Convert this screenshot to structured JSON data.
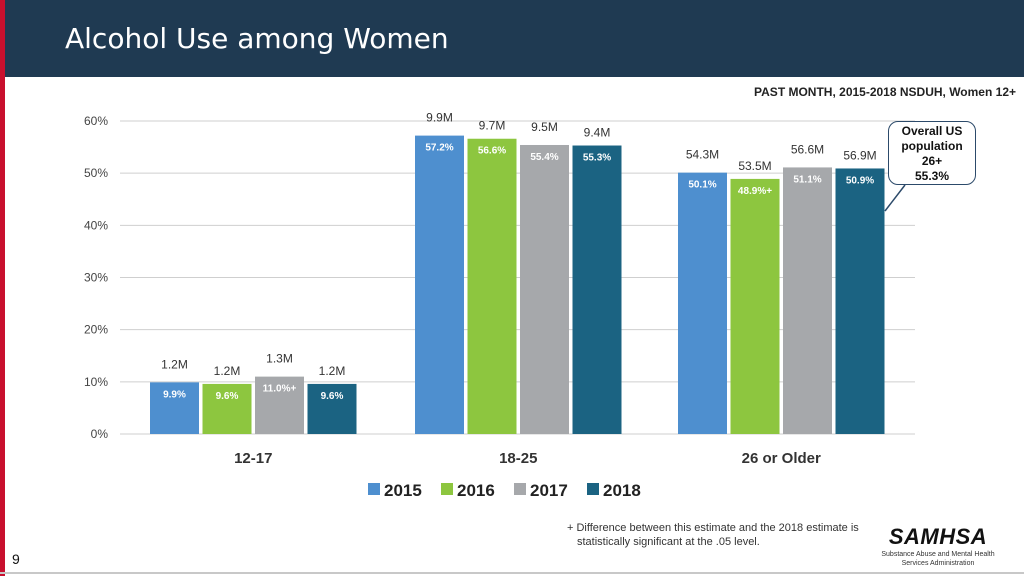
{
  "header": {
    "title": "Alcohol Use among Women"
  },
  "subtitle": "PAST MONTH, 2015-2018 NSDUH, Women 12+",
  "callout": {
    "line1": "Overall US",
    "line2": "population",
    "line3": "26+",
    "line4": "55.3%"
  },
  "footnote": {
    "line1": "+  Difference between this estimate and the 2018 estimate is",
    "line2": "statistically significant at the .05 level."
  },
  "page_number": "9",
  "logo": {
    "name": "SAMHSA",
    "line1": "Substance Abuse and Mental Health",
    "line2": "Services Administration"
  },
  "colors": {
    "2015": "#4e8fcf",
    "2016": "#8dc63f",
    "2017": "#a6a8ab",
    "2018": "#1b6382"
  },
  "chart_data": {
    "type": "bar",
    "title": "Alcohol Use among Women",
    "categories": [
      "12-17",
      "18-25",
      "26 or Older"
    ],
    "ylim": [
      0,
      60
    ],
    "yticks": [
      "0%",
      "10%",
      "20%",
      "30%",
      "40%",
      "50%",
      "60%"
    ],
    "legend_position": "bottom",
    "series": [
      {
        "name": "2015",
        "values": [
          9.9,
          57.2,
          50.1
        ],
        "labels": [
          "9.9%",
          "57.2%",
          "50.1%"
        ],
        "counts": [
          "1.2M",
          "9.9M",
          "54.3M"
        ],
        "flags": [
          "",
          "",
          ""
        ]
      },
      {
        "name": "2016",
        "values": [
          9.6,
          56.6,
          48.9
        ],
        "labels": [
          "9.6%",
          "56.6%",
          "48.9%"
        ],
        "counts": [
          "1.2M",
          "9.7M",
          "53.5M"
        ],
        "flags": [
          "",
          "",
          "+"
        ]
      },
      {
        "name": "2017",
        "values": [
          11.0,
          55.4,
          51.1
        ],
        "labels": [
          "11.0%",
          "55.4%",
          "51.1%"
        ],
        "counts": [
          "1.3M",
          "9.5M",
          "56.6M"
        ],
        "flags": [
          "+",
          "",
          ""
        ]
      },
      {
        "name": "2018",
        "values": [
          9.6,
          55.3,
          50.9
        ],
        "labels": [
          "9.6%",
          "55.3%",
          "50.9%"
        ],
        "counts": [
          "1.2M",
          "9.4M",
          "56.9M"
        ],
        "flags": [
          "",
          "",
          ""
        ]
      }
    ]
  }
}
